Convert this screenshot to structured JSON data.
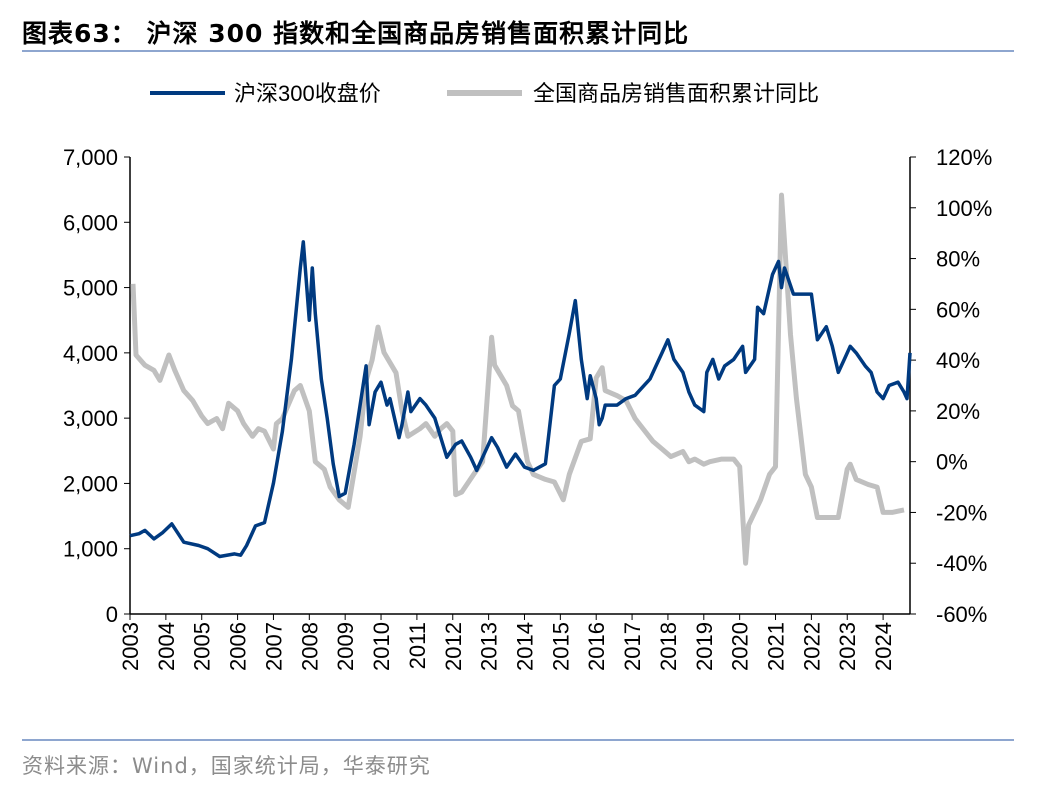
{
  "header": {
    "title": "图表63：  沪深 300 指数和全国商品房销售面积累计同比"
  },
  "footer": {
    "source": "资料来源：Wind，国家统计局，华泰研究"
  },
  "colors": {
    "csi300": "#003a80",
    "sales": "#c0c0c0",
    "rule": "#8ea6cf"
  },
  "chart_data": {
    "type": "line",
    "legend_position": "top",
    "grid": false,
    "x_ticks": [
      "2003",
      "2004",
      "2005",
      "2006",
      "2007",
      "2008",
      "2009",
      "2010",
      "2011",
      "2012",
      "2013",
      "2014",
      "2015",
      "2016",
      "2017",
      "2018",
      "2019",
      "2020",
      "2021",
      "2022",
      "2023",
      "2024"
    ],
    "y_left": {
      "ylim": [
        0,
        7000
      ],
      "ticks": [
        "0",
        "1,000",
        "2,000",
        "3,000",
        "4,000",
        "5,000",
        "6,000",
        "7,000"
      ]
    },
    "y_right": {
      "ylim": [
        -60,
        120
      ],
      "ticks": [
        "-60%",
        "-40%",
        "-20%",
        "0%",
        "20%",
        "40%",
        "60%",
        "80%",
        "100%",
        "120%"
      ]
    },
    "series": [
      {
        "name": "沪深300收盘价",
        "axis": "left",
        "points": [
          [
            "2003-01",
            1200
          ],
          [
            "2003-04",
            1230
          ],
          [
            "2003-06",
            1280
          ],
          [
            "2003-09",
            1150
          ],
          [
            "2003-12",
            1250
          ],
          [
            "2004-03",
            1380
          ],
          [
            "2004-07",
            1100
          ],
          [
            "2004-12",
            1050
          ],
          [
            "2005-03",
            1000
          ],
          [
            "2005-07",
            880
          ],
          [
            "2005-12",
            920
          ],
          [
            "2006-02",
            900
          ],
          [
            "2006-04",
            1050
          ],
          [
            "2006-07",
            1350
          ],
          [
            "2006-10",
            1400
          ],
          [
            "2007-01",
            2000
          ],
          [
            "2007-04",
            2800
          ],
          [
            "2007-07",
            3900
          ],
          [
            "2007-10",
            5300
          ],
          [
            "2007-11",
            5700
          ],
          [
            "2008-01",
            4500
          ],
          [
            "2008-02",
            5300
          ],
          [
            "2008-03",
            4600
          ],
          [
            "2008-05",
            3600
          ],
          [
            "2008-07",
            3000
          ],
          [
            "2008-09",
            2300
          ],
          [
            "2008-11",
            1800
          ],
          [
            "2009-01",
            1850
          ],
          [
            "2009-04",
            2600
          ],
          [
            "2009-08",
            3800
          ],
          [
            "2009-09",
            2900
          ],
          [
            "2009-11",
            3400
          ],
          [
            "2010-01",
            3550
          ],
          [
            "2010-03",
            3200
          ],
          [
            "2010-04",
            3300
          ],
          [
            "2010-07",
            2700
          ],
          [
            "2010-08",
            2900
          ],
          [
            "2010-10",
            3400
          ],
          [
            "2010-11",
            3100
          ],
          [
            "2011-02",
            3300
          ],
          [
            "2011-04",
            3200
          ],
          [
            "2011-07",
            3000
          ],
          [
            "2011-09",
            2700
          ],
          [
            "2011-11",
            2400
          ],
          [
            "2012-02",
            2600
          ],
          [
            "2012-04",
            2650
          ],
          [
            "2012-07",
            2400
          ],
          [
            "2012-09",
            2200
          ],
          [
            "2012-11",
            2400
          ],
          [
            "2013-02",
            2700
          ],
          [
            "2013-04",
            2550
          ],
          [
            "2013-07",
            2250
          ],
          [
            "2013-10",
            2450
          ],
          [
            "2014-01",
            2250
          ],
          [
            "2014-04",
            2200
          ],
          [
            "2014-08",
            2300
          ],
          [
            "2014-11",
            3500
          ],
          [
            "2015-01",
            3600
          ],
          [
            "2015-04",
            4300
          ],
          [
            "2015-06",
            4800
          ],
          [
            "2015-08",
            3900
          ],
          [
            "2015-10",
            3300
          ],
          [
            "2015-11",
            3650
          ],
          [
            "2016-01",
            3300
          ],
          [
            "2016-02",
            2900
          ],
          [
            "2016-03",
            3000
          ],
          [
            "2016-04",
            3200
          ],
          [
            "2016-08",
            3200
          ],
          [
            "2016-11",
            3300
          ],
          [
            "2017-02",
            3350
          ],
          [
            "2017-04",
            3450
          ],
          [
            "2017-07",
            3600
          ],
          [
            "2017-09",
            3800
          ],
          [
            "2017-11",
            4000
          ],
          [
            "2018-01",
            4200
          ],
          [
            "2018-03",
            3900
          ],
          [
            "2018-06",
            3700
          ],
          [
            "2018-08",
            3400
          ],
          [
            "2018-10",
            3200
          ],
          [
            "2019-01",
            3100
          ],
          [
            "2019-02",
            3700
          ],
          [
            "2019-04",
            3900
          ],
          [
            "2019-06",
            3600
          ],
          [
            "2019-08",
            3800
          ],
          [
            "2019-11",
            3900
          ],
          [
            "2020-02",
            4100
          ],
          [
            "2020-03",
            3700
          ],
          [
            "2020-06",
            3900
          ],
          [
            "2020-07",
            4700
          ],
          [
            "2020-09",
            4600
          ],
          [
            "2020-12",
            5200
          ],
          [
            "2021-02",
            5400
          ],
          [
            "2021-03",
            5000
          ],
          [
            "2021-04",
            5300
          ],
          [
            "2021-07",
            4900
          ],
          [
            "2021-10",
            4900
          ],
          [
            "2022-01",
            4900
          ],
          [
            "2022-03",
            4200
          ],
          [
            "2022-06",
            4400
          ],
          [
            "2022-08",
            4100
          ],
          [
            "2022-10",
            3700
          ],
          [
            "2022-12",
            3900
          ],
          [
            "2023-02",
            4100
          ],
          [
            "2023-04",
            4000
          ],
          [
            "2023-07",
            3800
          ],
          [
            "2023-09",
            3700
          ],
          [
            "2023-11",
            3400
          ],
          [
            "2024-01",
            3300
          ],
          [
            "2024-03",
            3500
          ],
          [
            "2024-06",
            3550
          ],
          [
            "2024-08",
            3400
          ],
          [
            "2024-09",
            3300
          ],
          [
            "2024-10",
            4000
          ]
        ]
      },
      {
        "name": "全国商品房销售面积累计同比",
        "axis": "right",
        "points": [
          [
            "2003-02",
            70
          ],
          [
            "2003-03",
            42
          ],
          [
            "2003-06",
            38
          ],
          [
            "2003-09",
            36
          ],
          [
            "2003-11",
            32
          ],
          [
            "2004-02",
            42
          ],
          [
            "2004-04",
            36
          ],
          [
            "2004-07",
            28
          ],
          [
            "2004-10",
            24
          ],
          [
            "2005-01",
            18
          ],
          [
            "2005-03",
            15
          ],
          [
            "2005-06",
            17
          ],
          [
            "2005-08",
            13
          ],
          [
            "2005-10",
            23
          ],
          [
            "2006-01",
            20
          ],
          [
            "2006-03",
            15
          ],
          [
            "2006-06",
            10
          ],
          [
            "2006-08",
            13
          ],
          [
            "2006-10",
            12
          ],
          [
            "2007-01",
            5
          ],
          [
            "2007-02",
            15
          ],
          [
            "2007-04",
            17
          ],
          [
            "2007-08",
            28
          ],
          [
            "2007-10",
            30
          ],
          [
            "2008-01",
            20
          ],
          [
            "2008-03",
            0
          ],
          [
            "2008-06",
            -3
          ],
          [
            "2008-08",
            -10
          ],
          [
            "2008-11",
            -15
          ],
          [
            "2009-02",
            -18
          ],
          [
            "2009-06",
            10
          ],
          [
            "2009-08",
            32
          ],
          [
            "2009-10",
            40
          ],
          [
            "2009-12",
            53
          ],
          [
            "2010-02",
            43
          ],
          [
            "2010-06",
            35
          ],
          [
            "2010-08",
            20
          ],
          [
            "2010-10",
            10
          ],
          [
            "2011-02",
            13
          ],
          [
            "2011-04",
            15
          ],
          [
            "2011-07",
            10
          ],
          [
            "2011-09",
            13
          ],
          [
            "2011-11",
            15
          ],
          [
            "2012-01",
            12
          ],
          [
            "2012-02",
            -13
          ],
          [
            "2012-04",
            -12
          ],
          [
            "2012-08",
            -5
          ],
          [
            "2012-11",
            0
          ],
          [
            "2013-02",
            49
          ],
          [
            "2013-03",
            38
          ],
          [
            "2013-07",
            30
          ],
          [
            "2013-09",
            22
          ],
          [
            "2013-11",
            20
          ],
          [
            "2014-02",
            0
          ],
          [
            "2014-04",
            -5
          ],
          [
            "2014-08",
            -7
          ],
          [
            "2014-11",
            -8
          ],
          [
            "2015-02",
            -15
          ],
          [
            "2015-04",
            -5
          ],
          [
            "2015-08",
            8
          ],
          [
            "2015-11",
            9
          ],
          [
            "2016-01",
            33
          ],
          [
            "2016-03",
            37
          ],
          [
            "2016-04",
            28
          ],
          [
            "2016-08",
            26
          ],
          [
            "2016-11",
            24
          ],
          [
            "2017-02",
            17
          ],
          [
            "2017-04",
            14
          ],
          [
            "2017-08",
            8
          ],
          [
            "2017-11",
            5
          ],
          [
            "2018-02",
            2
          ],
          [
            "2018-06",
            4
          ],
          [
            "2018-08",
            0
          ],
          [
            "2018-10",
            1
          ],
          [
            "2019-01",
            -1
          ],
          [
            "2019-03",
            0
          ],
          [
            "2019-07",
            1
          ],
          [
            "2019-11",
            1
          ],
          [
            "2020-01",
            -2
          ],
          [
            "2020-03",
            -40
          ],
          [
            "2020-04",
            -25
          ],
          [
            "2020-08",
            -15
          ],
          [
            "2020-11",
            -5
          ],
          [
            "2021-01",
            -2
          ],
          [
            "2021-03",
            105
          ],
          [
            "2021-06",
            50
          ],
          [
            "2021-08",
            25
          ],
          [
            "2021-11",
            -5
          ],
          [
            "2022-01",
            -10
          ],
          [
            "2022-03",
            -22
          ],
          [
            "2022-07",
            -22
          ],
          [
            "2022-10",
            -22
          ],
          [
            "2023-01",
            -3
          ],
          [
            "2023-02",
            -1
          ],
          [
            "2023-04",
            -7
          ],
          [
            "2023-08",
            -9
          ],
          [
            "2023-11",
            -10
          ],
          [
            "2024-01",
            -20
          ],
          [
            "2024-04",
            -20
          ],
          [
            "2024-08",
            -19
          ]
        ]
      }
    ]
  }
}
